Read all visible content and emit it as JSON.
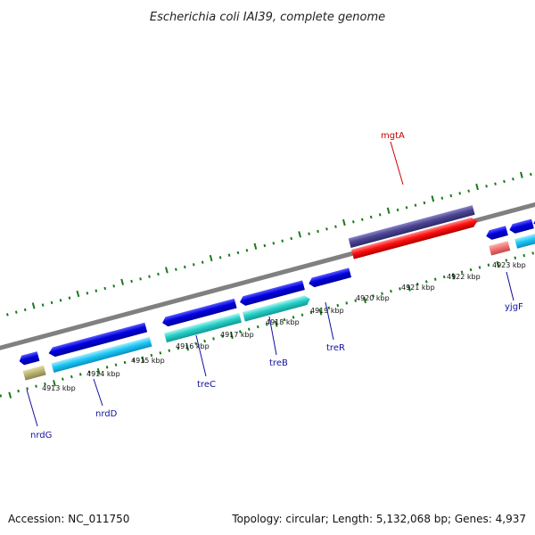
{
  "title": "Escherichia coli IAI39, complete genome",
  "footer": {
    "accession": "Accession: NC_011750",
    "summary": "Topology: circular; Length: 5,132,068 bp; Genes: 4,937"
  },
  "colors": {
    "backbone": "#808080",
    "tick": "#1a7a1a",
    "gene_label_blue": "#1010a0",
    "gene_label_red": "#cc0000"
  },
  "position_labels": [
    "4913 kbp",
    "4914 kbp",
    "4915 kbp",
    "4916 kbp",
    "4917 kbp",
    "4918 kbp",
    "4919 kbp",
    "4920 kbp",
    "4921 kbp",
    "4922 kbp",
    "4923 kbp"
  ],
  "gene_labels": [
    {
      "name": "nrdG",
      "color": "#1010a0"
    },
    {
      "name": "nrdD",
      "color": "#1010a0"
    },
    {
      "name": "treC",
      "color": "#1010a0"
    },
    {
      "name": "treB",
      "color": "#1010a0"
    },
    {
      "name": "treR",
      "color": "#1010a0"
    },
    {
      "name": "mgtA",
      "color": "#cc0000"
    },
    {
      "name": "yjgF",
      "color": "#1010a0"
    }
  ]
}
